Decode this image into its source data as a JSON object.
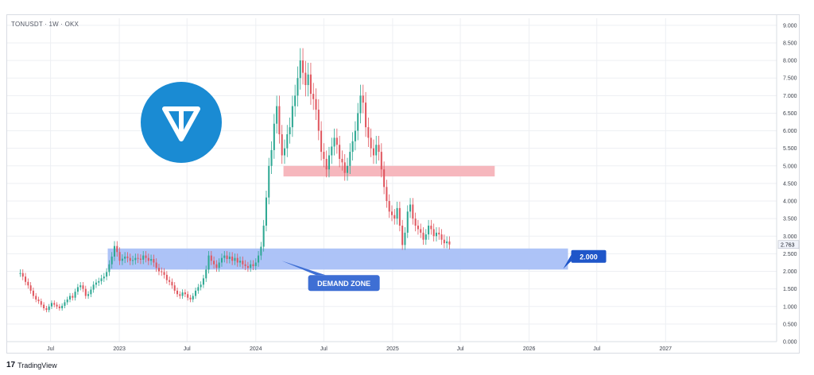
{
  "header": {
    "symbol_title": "TONUSDT · 1W · OKX"
  },
  "footer": {
    "brand": "TradingView",
    "brand_icon": "17"
  },
  "colors": {
    "bullish": "#2ea893",
    "bearish": "#e0575f",
    "demand_zone_fill": "#a9c0f7",
    "supply_zone_fill": "#f6b3b9",
    "label_bg": "#1f56c9",
    "callout_bg": "#3e6fd4",
    "logo_bg": "#1a8bd3",
    "grid": "#edeff3"
  },
  "logo": {
    "icon": "ton-logo-icon"
  },
  "chart_data": {
    "type": "candlestick",
    "title": "TONUSDT · 1W · OKX",
    "xlabel": "",
    "ylabel": "",
    "y_scale": "linear",
    "ylim": [
      0,
      9.2
    ],
    "x_range": [
      "2022-03-07",
      "2027-10-25"
    ],
    "y_tick_labels": [
      "0.000",
      "0.500",
      "1.000",
      "1.500",
      "2.000",
      "2.500",
      "3.000",
      "3.500",
      "4.000",
      "4.500",
      "5.000",
      "5.500",
      "6.000",
      "6.500",
      "7.000",
      "7.500",
      "8.000",
      "8.500",
      "9.000"
    ],
    "y_ticks": [
      0,
      0.5,
      1,
      1.5,
      2,
      2.5,
      3,
      3.5,
      4,
      4.5,
      5,
      5.5,
      6,
      6.5,
      7,
      7.5,
      8,
      8.5,
      9
    ],
    "x_tick_labels": [
      "Jul",
      "2023",
      "Jul",
      "2024",
      "Jul",
      "2025",
      "Jul",
      "2026",
      "Jul",
      "2027"
    ],
    "x_ticks": [
      "2022-07-01",
      "2023-01-01",
      "2023-07-01",
      "2024-01-01",
      "2024-07-01",
      "2025-01-01",
      "2025-07-01",
      "2026-01-01",
      "2026-07-01",
      "2027-01-01"
    ],
    "grid": true,
    "last_price": 2.763,
    "last_price_label": "2.763",
    "zones": [
      {
        "name": "demand",
        "low": 2.05,
        "high": 2.65,
        "start": "2022-12-01",
        "end": "2026-04-15",
        "label": "DEMAND ZONE"
      },
      {
        "name": "supply",
        "low": 4.7,
        "high": 5.0,
        "start": "2024-03-15",
        "end": "2025-10-01",
        "label": ""
      }
    ],
    "level_label": {
      "value": 2.0,
      "text": "2.000"
    },
    "series": [
      {
        "start": "2022-04-11",
        "closes": [
          1.95,
          1.85,
          1.7,
          1.6,
          1.45,
          1.3,
          1.2,
          1.15,
          1.05,
          0.95,
          0.9,
          1.0,
          1.1,
          1.05,
          1.0,
          0.95,
          1.02,
          1.12,
          1.2,
          1.3,
          1.25,
          1.42,
          1.55,
          1.6,
          1.5,
          1.3,
          1.35,
          1.48,
          1.62,
          1.68,
          1.72,
          1.8,
          1.85,
          1.98,
          2.2,
          2.42,
          2.72,
          2.55,
          2.3,
          2.36,
          2.42,
          2.38,
          2.3,
          2.32,
          2.38,
          2.36,
          2.33,
          2.45,
          2.38,
          2.3,
          2.35,
          2.25,
          2.1,
          2.0,
          1.98,
          1.9,
          1.75,
          1.7,
          1.6,
          1.45,
          1.35,
          1.3,
          1.4,
          1.35,
          1.25,
          1.2,
          1.3,
          1.45,
          1.55,
          1.62,
          1.8,
          2.05,
          2.45,
          2.3,
          2.2,
          2.1,
          2.25,
          2.38,
          2.45,
          2.35,
          2.42,
          2.3,
          2.38,
          2.25,
          2.3,
          2.2,
          2.15,
          2.1,
          2.2,
          2.15,
          2.25,
          2.45,
          2.7,
          3.3,
          4.1,
          5.0,
          5.45,
          6.2,
          6.7,
          5.9,
          5.3,
          5.5,
          5.9,
          6.1,
          6.7,
          7.0,
          7.5,
          8.0,
          7.65,
          7.3,
          7.6,
          7.05,
          6.9,
          6.6,
          6.0,
          5.4,
          5.2,
          4.9,
          5.3,
          5.55,
          5.8,
          5.6,
          5.2,
          5.1,
          4.8,
          5.0,
          5.4,
          5.7,
          6.0,
          6.5,
          7.0,
          6.8,
          6.1,
          5.8,
          5.5,
          5.3,
          5.6,
          5.4,
          4.9,
          4.4,
          4.0,
          3.7,
          3.6,
          3.5,
          3.8,
          3.3,
          2.75,
          3.1,
          3.7,
          3.9,
          3.5,
          3.3,
          3.2,
          3.1,
          2.9,
          3.05,
          3.3,
          3.2,
          3.0,
          3.1,
          3.05,
          2.9,
          2.8,
          2.85,
          2.763
        ],
        "opens": [
          1.95
        ],
        "first_open": 1.95
      }
    ]
  },
  "annotations": {
    "demand_zone_label": "DEMAND ZONE",
    "level_value_label": "2.000"
  }
}
